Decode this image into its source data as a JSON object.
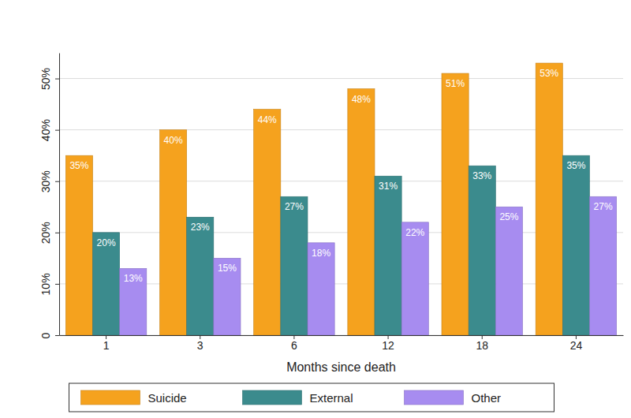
{
  "chart_data": {
    "type": "bar",
    "x_label": "Months since death",
    "categories": [
      "1",
      "3",
      "6",
      "12",
      "18",
      "24"
    ],
    "series": [
      {
        "name": "Suicide",
        "color": "#f5a21e",
        "values": [
          35,
          40,
          44,
          48,
          51,
          53
        ],
        "value_labels": [
          "35%",
          "40%",
          "44%",
          "48%",
          "51%",
          "53%"
        ]
      },
      {
        "name": "External",
        "color": "#3b8b8d",
        "values": [
          20,
          23,
          27,
          31,
          33,
          35
        ],
        "value_labels": [
          "20%",
          "23%",
          "27%",
          "31%",
          "33%",
          "35%"
        ]
      },
      {
        "name": "Other",
        "color": "#a78cf0",
        "values": [
          13,
          15,
          18,
          22,
          25,
          27
        ],
        "value_labels": [
          "13%",
          "15%",
          "18%",
          "22%",
          "25%",
          "27%"
        ]
      }
    ],
    "ylim": [
      0,
      55
    ],
    "yticks": [
      0,
      {
        "value": 10,
        "label": "10%"
      },
      {
        "value": 20,
        "label": "20%"
      },
      {
        "value": 30,
        "label": "30%"
      },
      {
        "value": 40,
        "label": "40%"
      },
      {
        "value": 50,
        "label": "50%"
      }
    ],
    "grid": true,
    "data_labels": true,
    "legend": "bottom"
  }
}
